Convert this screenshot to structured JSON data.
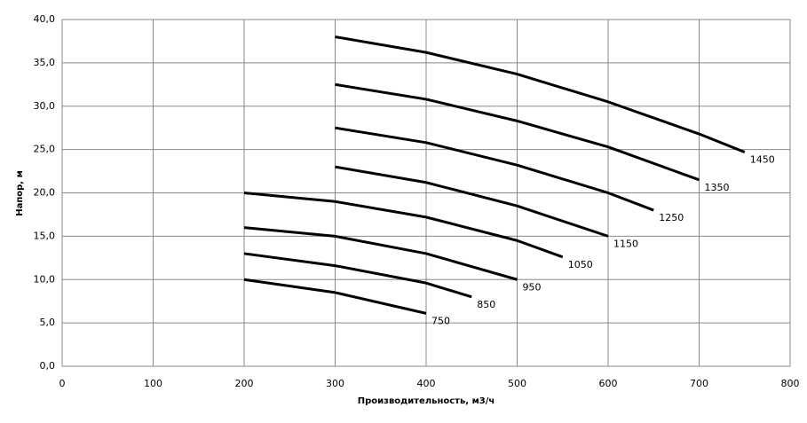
{
  "chart_data": {
    "type": "line",
    "x_label": "Производительность,  м3/ч",
    "y_label": "Напор, м",
    "xlim": [
      0,
      800
    ],
    "xticks": [
      0,
      100,
      200,
      300,
      400,
      500,
      600,
      700,
      800
    ],
    "ylim": [
      0,
      40
    ],
    "yticks": [
      {
        "value": 0,
        "label": "0,0"
      },
      {
        "value": 5,
        "label": "5,0"
      },
      {
        "value": 10,
        "label": "10,0"
      },
      {
        "value": 15,
        "label": "15,0"
      },
      {
        "value": 20,
        "label": "20,0"
      },
      {
        "value": 25,
        "label": "25,0"
      },
      {
        "value": 30,
        "label": "30,0"
      },
      {
        "value": 35,
        "label": "35,0"
      },
      {
        "value": 40,
        "label": "40,0"
      }
    ],
    "grid": true,
    "series": [
      {
        "name": "750",
        "color": "#000000",
        "x": [
          200,
          300,
          400
        ],
        "values": [
          10.0,
          8.5,
          6.1
        ]
      },
      {
        "name": "850",
        "color": "#000000",
        "x": [
          200,
          300,
          400,
          450
        ],
        "values": [
          13.0,
          11.6,
          9.6,
          8.0
        ]
      },
      {
        "name": "950",
        "color": "#000000",
        "x": [
          200,
          300,
          400,
          500
        ],
        "values": [
          16.0,
          15.0,
          13.0,
          10.0
        ]
      },
      {
        "name": "1050",
        "color": "#000000",
        "x": [
          200,
          300,
          400,
          500,
          550
        ],
        "values": [
          20.0,
          19.0,
          17.2,
          14.5,
          12.6
        ]
      },
      {
        "name": "1150",
        "color": "#000000",
        "x": [
          300,
          400,
          500,
          600
        ],
        "values": [
          23.0,
          21.2,
          18.5,
          15.0
        ]
      },
      {
        "name": "1250",
        "color": "#000000",
        "x": [
          300,
          400,
          500,
          600,
          650
        ],
        "values": [
          27.5,
          25.8,
          23.2,
          20.0,
          18.0
        ]
      },
      {
        "name": "1350",
        "color": "#000000",
        "x": [
          300,
          400,
          500,
          600,
          700
        ],
        "values": [
          32.5,
          30.8,
          28.3,
          25.3,
          21.5
        ]
      },
      {
        "name": "1450",
        "color": "#000000",
        "x": [
          300,
          400,
          500,
          600,
          700,
          750
        ],
        "values": [
          38.0,
          36.2,
          33.7,
          30.5,
          26.8,
          24.7
        ]
      }
    ]
  }
}
